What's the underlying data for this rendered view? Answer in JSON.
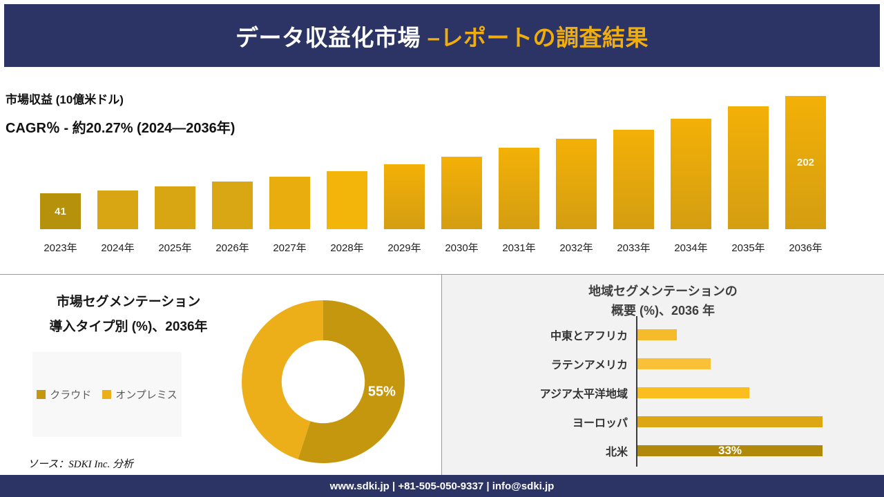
{
  "header": {
    "title_part1": "データ収益化市場 ",
    "title_part2": "–レポートの調査結果",
    "bg_color": "#2b3464",
    "accent_color": "#f0ad10"
  },
  "chart_data": [
    {
      "id": "market_revenue",
      "type": "bar",
      "title": "市場収益 (10億米ドル)",
      "subtitle": "CAGR％ - 約20.27% (2024―2036年)",
      "categories": [
        "2023年",
        "2024年",
        "2025年",
        "2026年",
        "2027年",
        "2028年",
        "2029年",
        "2030年",
        "2031年",
        "2032年",
        "2033年",
        "2034年",
        "2035年",
        "2036年"
      ],
      "values": [
        41,
        46,
        52,
        60,
        68,
        78,
        89,
        102,
        116,
        131,
        146,
        164,
        185,
        202
      ],
      "labeled_values": {
        "0": "41",
        "13": "202"
      },
      "bar_colors": [
        "#b5910c",
        "#d8a513",
        "#d8a513",
        "#d9a614",
        "#e9ad0e",
        "#f4b50a",
        [
          "#f3b007",
          "#d49e12"
        ],
        [
          "#f3b007",
          "#d49e12"
        ],
        [
          "#f3b007",
          "#d49e12"
        ],
        [
          "#f3b007",
          "#d49e12"
        ],
        [
          "#f3b007",
          "#d49e12"
        ],
        [
          "#f3b007",
          "#d49e12"
        ],
        [
          "#f3b007",
          "#d49e12"
        ],
        [
          "#f3b007",
          "#d49e12"
        ]
      ],
      "ylim": [
        0,
        210
      ],
      "grid": false,
      "legend_position": "none"
    },
    {
      "id": "deployment_split",
      "type": "pie",
      "title_line1": "市場セグメンテーション",
      "title_line2": "導入タイプ別 (%)、2036年",
      "slices": [
        {
          "label": "クラウド",
          "value": 55,
          "color": "#c4970e",
          "data_label": "55%"
        },
        {
          "label": "オンプレミス",
          "value": 45,
          "color": "#ecaf1a",
          "data_label": ""
        }
      ],
      "donut_hole_ratio": 0.51,
      "start_angle_deg": 0,
      "legend_position": "left"
    },
    {
      "id": "regional_overview",
      "type": "bar",
      "orientation": "horizontal",
      "title_line1": "地域セグメンテーションの",
      "title_line2": "概要 (%)、2036 年",
      "categories": [
        "中東とアフリカ",
        "ラテンアメリカ",
        "アジア太平洋地域",
        "ヨーロッパ",
        "北米"
      ],
      "values": [
        7,
        13,
        20,
        33,
        33
      ],
      "labeled_values": {
        "4": "33%"
      },
      "bar_colors": [
        "#f6bb2b",
        "#f8c137",
        "#fcbd1e",
        "#dca712",
        "#b1890a"
      ],
      "xlim": [
        0,
        34
      ],
      "grid": false
    }
  ],
  "source_note": "ソース：SDKI Inc. 分析",
  "footer": {
    "text": "www.sdki.jp | +81-505-050-9337 | info@sdki.jp",
    "bg_color": "#2b3464"
  }
}
